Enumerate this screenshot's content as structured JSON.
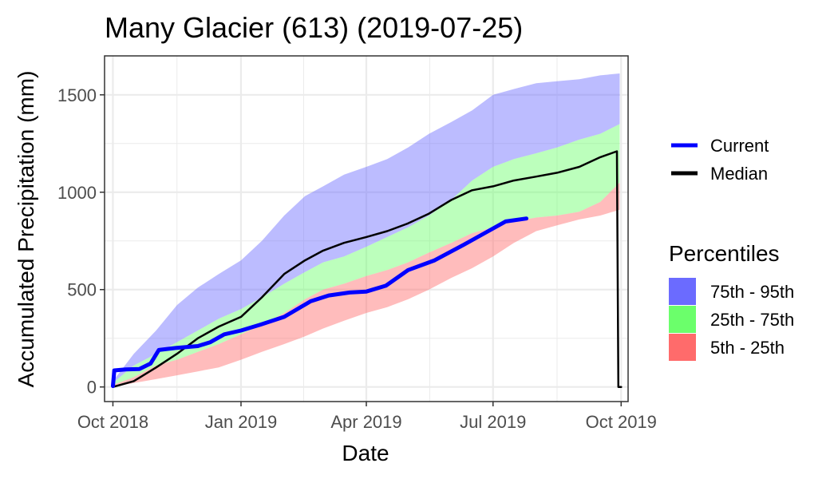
{
  "chart_data": {
    "type": "area",
    "title": "Many Glacier (613) (2019-07-25)",
    "xlabel": "Date",
    "ylabel": "Accumulated Precipitation (mm)",
    "xlim": [
      "2018-09-25",
      "2019-10-06"
    ],
    "ylim": [
      -75,
      1700
    ],
    "x_ticks": [
      {
        "date": "2018-10-01",
        "label": "Oct 2018"
      },
      {
        "date": "2019-01-01",
        "label": "Jan 2019"
      },
      {
        "date": "2019-04-01",
        "label": "Apr 2019"
      },
      {
        "date": "2019-07-01",
        "label": "Jul 2019"
      },
      {
        "date": "2019-10-01",
        "label": "Oct 2019"
      }
    ],
    "y_ticks": [
      0,
      500,
      1000,
      1500
    ],
    "grid": true,
    "legend_placement": "right",
    "legend_lines": [
      {
        "label": "Current",
        "color": "#0000ff"
      },
      {
        "label": "Median",
        "color": "#000000"
      }
    ],
    "legend_percentiles_title": "Percentiles",
    "legend_percentiles": [
      {
        "label": "75th - 95th",
        "color": "#6b6bff"
      },
      {
        "label": "25th - 75th",
        "color": "#6bff6b"
      },
      {
        "label": "5th - 25th",
        "color": "#ff6b6b"
      }
    ],
    "bands": {
      "x": [
        "2018-10-01",
        "2018-10-16",
        "2018-11-01",
        "2018-11-16",
        "2018-12-01",
        "2018-12-16",
        "2019-01-01",
        "2019-01-16",
        "2019-02-01",
        "2019-02-16",
        "2019-03-01",
        "2019-03-16",
        "2019-04-01",
        "2019-04-16",
        "2019-05-01",
        "2019-05-16",
        "2019-06-01",
        "2019-06-16",
        "2019-07-01",
        "2019-07-16",
        "2019-08-01",
        "2019-08-16",
        "2019-09-01",
        "2019-09-16",
        "2019-09-30"
      ],
      "p5": [
        0,
        20,
        40,
        60,
        80,
        100,
        140,
        180,
        220,
        260,
        300,
        340,
        380,
        410,
        450,
        500,
        560,
        610,
        670,
        740,
        800,
        830,
        860,
        880,
        910
      ],
      "p25": [
        10,
        50,
        110,
        140,
        180,
        220,
        270,
        320,
        380,
        450,
        500,
        530,
        570,
        600,
        640,
        690,
        740,
        790,
        820,
        850,
        870,
        880,
        900,
        950,
        1050
      ],
      "p75": [
        20,
        110,
        170,
        230,
        290,
        350,
        400,
        460,
        530,
        590,
        640,
        670,
        720,
        770,
        820,
        880,
        960,
        1060,
        1130,
        1170,
        1200,
        1230,
        1270,
        1300,
        1350
      ],
      "p95": [
        30,
        170,
        290,
        420,
        510,
        580,
        650,
        750,
        880,
        980,
        1030,
        1090,
        1130,
        1170,
        1230,
        1300,
        1360,
        1420,
        1500,
        1530,
        1560,
        1570,
        1580,
        1600,
        1610
      ]
    },
    "series": [
      {
        "name": "Current",
        "color": "#0000ff",
        "x": [
          "2018-10-01",
          "2018-10-02",
          "2018-10-10",
          "2018-10-20",
          "2018-10-28",
          "2018-11-03",
          "2018-11-15",
          "2018-12-01",
          "2018-12-10",
          "2018-12-20",
          "2019-01-01",
          "2019-01-15",
          "2019-02-01",
          "2019-02-20",
          "2019-03-05",
          "2019-03-20",
          "2019-04-01",
          "2019-04-15",
          "2019-05-01",
          "2019-05-20",
          "2019-06-10",
          "2019-06-25",
          "2019-07-10",
          "2019-07-25"
        ],
        "values": [
          5,
          85,
          90,
          92,
          120,
          190,
          200,
          210,
          230,
          270,
          290,
          320,
          360,
          440,
          470,
          485,
          490,
          520,
          600,
          650,
          730,
          790,
          850,
          865
        ]
      },
      {
        "name": "Median",
        "color": "#000000",
        "x": [
          "2018-10-01",
          "2018-10-16",
          "2018-11-01",
          "2018-11-16",
          "2018-12-01",
          "2018-12-16",
          "2019-01-01",
          "2019-01-16",
          "2019-02-01",
          "2019-02-16",
          "2019-03-01",
          "2019-03-16",
          "2019-04-01",
          "2019-04-16",
          "2019-05-01",
          "2019-05-16",
          "2019-06-01",
          "2019-06-16",
          "2019-07-01",
          "2019-07-16",
          "2019-08-01",
          "2019-08-16",
          "2019-09-01",
          "2019-09-16",
          "2019-09-28",
          "2019-09-29",
          "2019-10-01"
        ],
        "values": [
          0,
          30,
          100,
          170,
          250,
          310,
          360,
          460,
          580,
          650,
          700,
          740,
          770,
          800,
          840,
          890,
          960,
          1010,
          1030,
          1060,
          1080,
          1100,
          1130,
          1180,
          1210,
          0,
          0
        ]
      }
    ]
  }
}
